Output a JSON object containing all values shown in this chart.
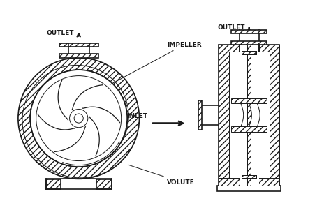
{
  "bg_color": "#ffffff",
  "line_color": "#1a1a1a",
  "labels": {
    "outlet_left": "OUTLET",
    "outlet_right": "OUTLET",
    "impeller": "IMPELLER",
    "inlet": "INLET",
    "volute": "VOLUTE"
  },
  "figsize": [
    4.74,
    3.11
  ],
  "dpi": 100,
  "lw_main": 1.2,
  "lw_thin": 0.7
}
